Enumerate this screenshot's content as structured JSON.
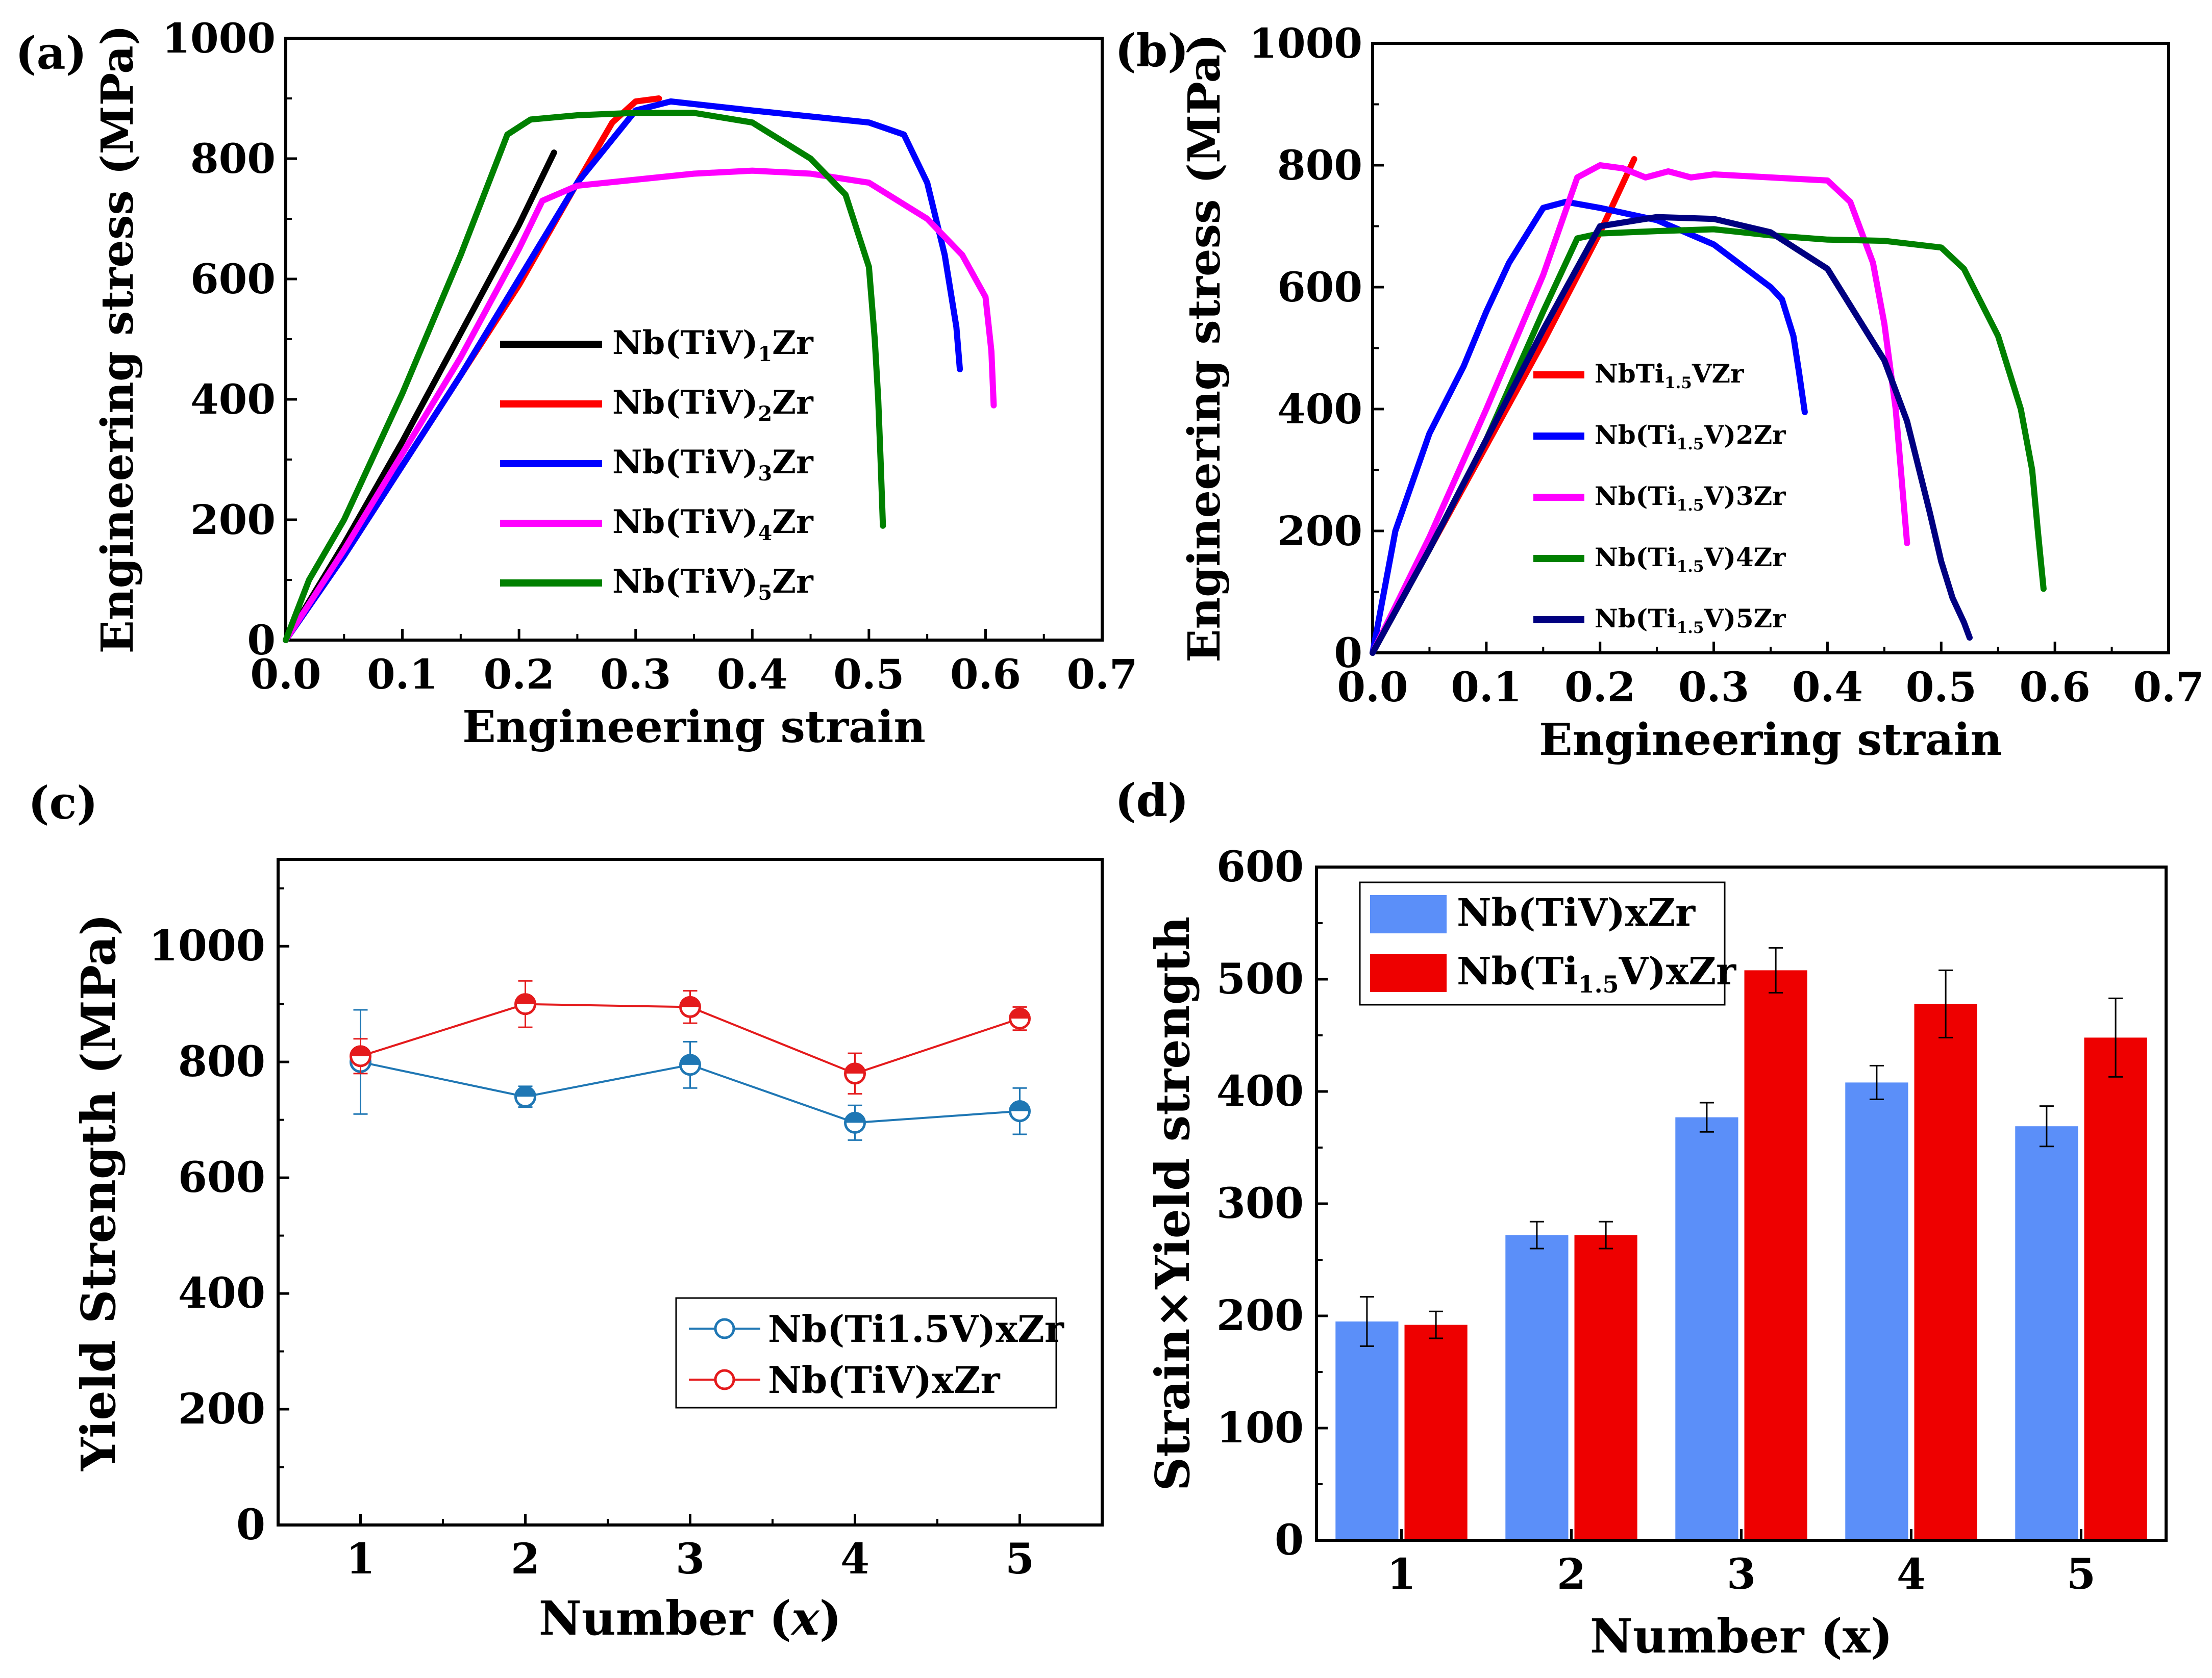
{
  "panels": {
    "a": {
      "label": "(a)",
      "chart_data": {
        "type": "line",
        "xlabel": "Engineering  strain",
        "ylabel": "Engineering  stress (MPa)",
        "xlim": [
          0,
          0.7
        ],
        "ylim": [
          0,
          1000
        ],
        "xticks": [
          "0.0",
          "0.1",
          "0.2",
          "0.3",
          "0.4",
          "0.5",
          "0.6",
          "0.7"
        ],
        "yticks": [
          "0",
          "200",
          "400",
          "600",
          "800",
          "1000"
        ],
        "series": [
          {
            "name": "Nb(TiV)1Zr",
            "base": "Nb(TiV)",
            "sub": "1",
            "tail": "Zr",
            "color": "#000000",
            "x": [
              0,
              0.05,
              0.1,
              0.15,
              0.2,
              0.23
            ],
            "y": [
              0,
              160,
              330,
              510,
              690,
              810
            ]
          },
          {
            "name": "Nb(TiV)2Zr",
            "base": "Nb(TiV)",
            "sub": "2",
            "tail": "Zr",
            "color": "#ff0000",
            "x": [
              0,
              0.05,
              0.1,
              0.15,
              0.2,
              0.25,
              0.28,
              0.3,
              0.32
            ],
            "y": [
              0,
              140,
              290,
              440,
              590,
              760,
              860,
              895,
              900
            ]
          },
          {
            "name": "Nb(TiV)3Zr",
            "base": "Nb(TiV)",
            "sub": "3",
            "tail": "Zr",
            "color": "#0000ff",
            "x": [
              0,
              0.05,
              0.1,
              0.15,
              0.2,
              0.25,
              0.3,
              0.33,
              0.4,
              0.45,
              0.5,
              0.53,
              0.55,
              0.565,
              0.575,
              0.578
            ],
            "y": [
              0,
              140,
              290,
              440,
              600,
              760,
              880,
              895,
              880,
              870,
              860,
              840,
              760,
              640,
              520,
              450
            ]
          },
          {
            "name": "Nb(TiV)4Zr",
            "base": "Nb(TiV)",
            "sub": "4",
            "tail": "Zr",
            "color": "#ff00ff",
            "x": [
              0,
              0.05,
              0.1,
              0.15,
              0.2,
              0.22,
              0.25,
              0.3,
              0.35,
              0.4,
              0.45,
              0.5,
              0.55,
              0.58,
              0.6,
              0.605,
              0.607
            ],
            "y": [
              0,
              150,
              310,
              470,
              650,
              730,
              755,
              765,
              775,
              780,
              775,
              760,
              700,
              640,
              570,
              480,
              390
            ]
          },
          {
            "name": "Nb(TiV)5Zr",
            "base": "Nb(TiV)",
            "sub": "5",
            "tail": "Zr",
            "color": "#008000",
            "x": [
              0,
              0.02,
              0.05,
              0.1,
              0.15,
              0.19,
              0.21,
              0.25,
              0.3,
              0.35,
              0.4,
              0.45,
              0.48,
              0.5,
              0.505,
              0.508,
              0.51,
              0.512
            ],
            "y": [
              0,
              100,
              200,
              410,
              640,
              840,
              865,
              872,
              876,
              876,
              860,
              800,
              740,
              620,
              500,
              400,
              300,
              190
            ]
          }
        ]
      }
    },
    "b": {
      "label": "(b)",
      "chart_data": {
        "type": "line",
        "xlabel": "Engineering  strain",
        "ylabel": "Engineering  stress (MPa)",
        "xlim": [
          0,
          0.7
        ],
        "ylim": [
          0,
          1000
        ],
        "xticks": [
          "0.0",
          "0.1",
          "0.2",
          "0.3",
          "0.4",
          "0.5",
          "0.6",
          "0.7"
        ],
        "yticks": [
          "0",
          "200",
          "400",
          "600",
          "800",
          "1000"
        ],
        "series": [
          {
            "name": "NbTi1.5VZr",
            "base": "NbTi",
            "sub": "1.5",
            "tail": "VZr",
            "color": "#ff0000",
            "x": [
              0,
              0.05,
              0.1,
              0.15,
              0.2,
              0.23
            ],
            "y": [
              0,
              170,
              340,
              510,
              690,
              810
            ]
          },
          {
            "name": "Nb(Ti1.5V)2Zr",
            "base": "Nb(Ti",
            "sub": "1.5",
            "tail": "V)2Zr",
            "color": "#0000ff",
            "x": [
              0,
              0.02,
              0.05,
              0.08,
              0.1,
              0.12,
              0.15,
              0.17,
              0.2,
              0.25,
              0.3,
              0.35,
              0.36,
              0.37,
              0.375,
              0.38
            ],
            "y": [
              0,
              200,
              360,
              470,
              560,
              640,
              730,
              740,
              730,
              710,
              670,
              600,
              580,
              520,
              460,
              395
            ]
          },
          {
            "name": "Nb(Ti1.5V)3Zr",
            "base": "Nb(Ti",
            "sub": "1.5",
            "tail": "V)3Zr",
            "color": "#ff00ff",
            "x": [
              0,
              0.05,
              0.1,
              0.15,
              0.18,
              0.2,
              0.22,
              0.24,
              0.26,
              0.28,
              0.3,
              0.35,
              0.4,
              0.42,
              0.44,
              0.45,
              0.46,
              0.465,
              0.47
            ],
            "y": [
              0,
              190,
              400,
              620,
              780,
              800,
              795,
              780,
              790,
              780,
              785,
              780,
              775,
              740,
              640,
              540,
              400,
              290,
              180
            ]
          },
          {
            "name": "Nb(Ti1.5V)4Zr",
            "base": "Nb(Ti",
            "sub": "1.5",
            "tail": "V)4Zr",
            "color": "#008000",
            "x": [
              0,
              0.05,
              0.1,
              0.15,
              0.18,
              0.2,
              0.25,
              0.3,
              0.35,
              0.4,
              0.45,
              0.5,
              0.52,
              0.55,
              0.57,
              0.58,
              0.585,
              0.59
            ],
            "y": [
              0,
              170,
              350,
              560,
              680,
              688,
              692,
              695,
              685,
              678,
              676,
              665,
              630,
              520,
              400,
              300,
              200,
              105
            ]
          },
          {
            "name": "Nb(Ti1.5V)5Zr",
            "base": "Nb(Ti",
            "sub": "1.5",
            "tail": "V)5Zr",
            "color": "#000080",
            "x": [
              0,
              0.05,
              0.1,
              0.15,
              0.2,
              0.25,
              0.3,
              0.35,
              0.4,
              0.45,
              0.47,
              0.49,
              0.5,
              0.51,
              0.52,
              0.525
            ],
            "y": [
              0,
              170,
              350,
              530,
              700,
              715,
              712,
              690,
              630,
              480,
              380,
              230,
              150,
              90,
              50,
              25
            ]
          }
        ]
      }
    },
    "c": {
      "label": "(c)",
      "chart_data": {
        "type": "line",
        "xlabel_main": "Number (",
        "xlabel_var": "x",
        "xlabel_end": ")",
        "ylabel": "Yield Strength (MPa)",
        "xlim": [
          0.5,
          5.5
        ],
        "ylim": [
          0,
          1150
        ],
        "categories": [
          "1",
          "2",
          "3",
          "4",
          "5"
        ],
        "yticks": [
          "0",
          "200",
          "400",
          "600",
          "800",
          "1000"
        ],
        "series": [
          {
            "name": "Nb(Ti1.5V)xZr",
            "color": "#1f77b4",
            "values": [
              800,
              740,
              795,
              695,
              715
            ],
            "err": [
              90,
              18,
              40,
              30,
              40
            ]
          },
          {
            "name": "Nb(TiV)xZr",
            "color": "#e41a1c",
            "values": [
              810,
              900,
              895,
              780,
              875
            ],
            "err": [
              30,
              40,
              28,
              35,
              20
            ]
          }
        ]
      }
    },
    "d": {
      "label": "(d)",
      "chart_data": {
        "type": "bar",
        "xlabel": "Number (x)",
        "ylabel": "Strain×Yield strength",
        "ylim": [
          0,
          600
        ],
        "categories": [
          "1",
          "2",
          "3",
          "4",
          "5"
        ],
        "yticks": [
          "0",
          "100",
          "200",
          "300",
          "400",
          "500",
          "600"
        ],
        "series": [
          {
            "name": "Nb(TiV)xZr",
            "color": "#5b8ff9",
            "values": [
              195,
              272,
              377,
              408,
              369
            ],
            "err": [
              22,
              12,
              13,
              15,
              18
            ]
          },
          {
            "name": "Nb(Ti1.5V)xZr",
            "base": "Nb(Ti",
            "sub": "1.5",
            "tail": "V)xZr",
            "color": "#ee0000",
            "values": [
              192,
              272,
              508,
              478,
              448
            ],
            "err": [
              12,
              12,
              20,
              30,
              35
            ]
          }
        ]
      }
    }
  }
}
